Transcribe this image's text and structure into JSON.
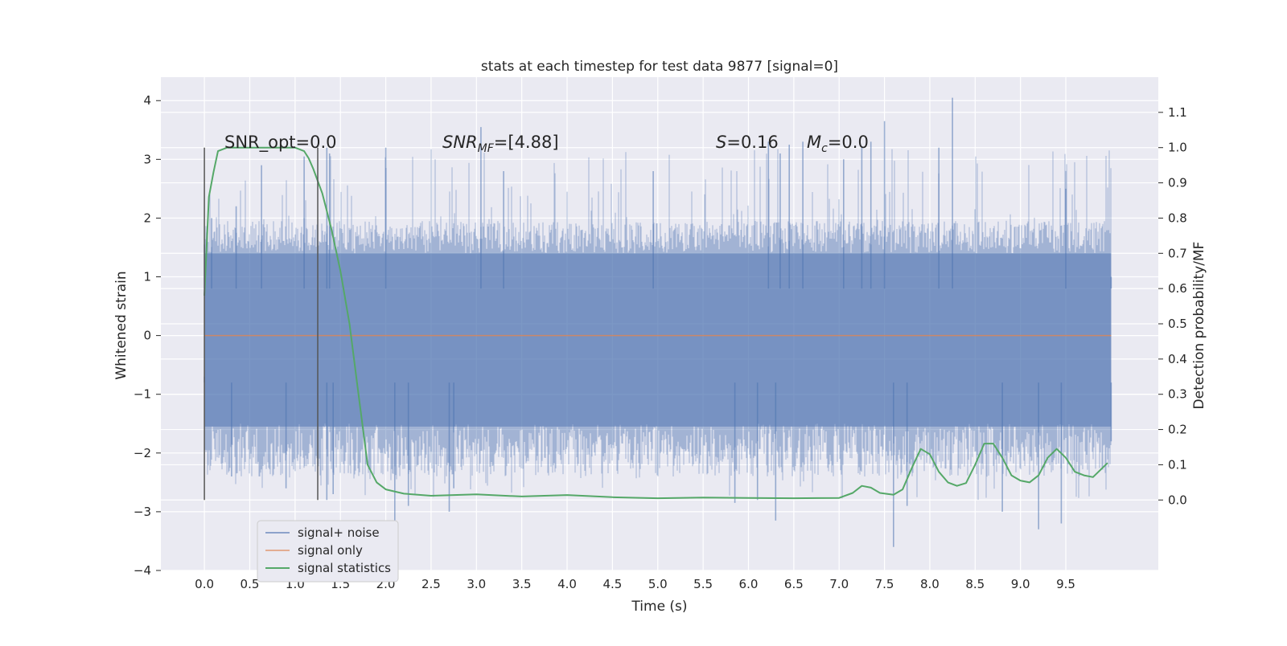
{
  "chart_data": {
    "type": "line",
    "title": "stats at each timestep for test data 9877 [signal=0]",
    "xlabel": "Time (s)",
    "ylabel_left": "Whitened strain",
    "ylabel_right": "Detection probability/MF",
    "xlim": [
      -0.48,
      10.52
    ],
    "ylim_left": [
      -4,
      4.4
    ],
    "ylim_right": [
      -0.2,
      1.2
    ],
    "x_ticks": [
      0.0,
      0.5,
      1.0,
      1.5,
      2.0,
      2.5,
      3.0,
      3.5,
      4.0,
      4.5,
      5.0,
      5.5,
      6.0,
      6.5,
      7.0,
      7.5,
      8.0,
      8.5,
      9.0,
      9.5
    ],
    "x_tick_labels": [
      "0.0",
      "0.5",
      "1.0",
      "1.5",
      "2.0",
      "2.5",
      "3.0",
      "3.5",
      "4.0",
      "4.5",
      "5.0",
      "5.5",
      "6.0",
      "6.5",
      "7.0",
      "7.5",
      "8.0",
      "8.5",
      "9.0",
      "9.5"
    ],
    "y_left_ticks": [
      -4,
      -3,
      -2,
      -1,
      0,
      1,
      2,
      3,
      4
    ],
    "y_left_tick_labels": [
      "−4",
      "−3",
      "−2",
      "−1",
      "0",
      "1",
      "2",
      "3",
      "4"
    ],
    "y_right_ticks": [
      0.0,
      0.1,
      0.2,
      0.3,
      0.4,
      0.5,
      0.6,
      0.7,
      0.8,
      0.9,
      1.0,
      1.1
    ],
    "y_right_tick_labels": [
      "0.0",
      "0.1",
      "0.2",
      "0.3",
      "0.4",
      "0.5",
      "0.6",
      "0.7",
      "0.8",
      "0.9",
      "1.0",
      "1.1"
    ],
    "grid": true,
    "legend_placement": "lower-left",
    "annotations": {
      "snr_opt": "SNR_opt=0.0",
      "snr_mf_name": "SNR",
      "snr_mf_sub": "MF",
      "snr_mf_value": "=[4.88]",
      "s_name": "S",
      "s_value": "=0.16",
      "mc_name": "M",
      "mc_sub": "c",
      "mc_value": "=0.0"
    },
    "vertical_markers": [
      {
        "x": 0.0,
        "y_range": [
          -2.8,
          3.2
        ]
      },
      {
        "x": 1.25,
        "y_range": [
          -2.8,
          3.2
        ]
      }
    ],
    "series": [
      {
        "name": "signal+ noise",
        "axis": "left",
        "color": "#4c72b0",
        "kind": "dense_noise",
        "x_range": [
          0.0,
          10.0
        ],
        "core_band": [
          -1.55,
          1.4
        ],
        "peaks_upper": [
          [
            0.0,
            1.55
          ],
          [
            0.08,
            2.0
          ],
          [
            0.35,
            2.2
          ],
          [
            0.63,
            2.9
          ],
          [
            1.1,
            3.05
          ],
          [
            1.35,
            3.2
          ],
          [
            1.38,
            3.1
          ],
          [
            2.0,
            3.2
          ],
          [
            3.05,
            3.55
          ],
          [
            3.3,
            2.8
          ],
          [
            4.95,
            2.8
          ],
          [
            6.22,
            3.3
          ],
          [
            6.35,
            3.1
          ],
          [
            6.45,
            3.25
          ],
          [
            6.6,
            3.3
          ],
          [
            7.05,
            3.0
          ],
          [
            7.25,
            3.2
          ],
          [
            7.35,
            3.3
          ],
          [
            7.5,
            3.65
          ],
          [
            8.1,
            3.2
          ],
          [
            8.25,
            4.05
          ],
          [
            9.5,
            2.5
          ],
          [
            10.0,
            1.0
          ]
        ],
        "peaks_lower": [
          [
            0.0,
            -0.7
          ],
          [
            0.3,
            -2.4
          ],
          [
            0.9,
            -2.6
          ],
          [
            1.35,
            -2.8
          ],
          [
            1.42,
            -2.7
          ],
          [
            2.1,
            -3.15
          ],
          [
            2.25,
            -2.9
          ],
          [
            2.7,
            -3.0
          ],
          [
            2.75,
            -2.6
          ],
          [
            5.85,
            -2.85
          ],
          [
            6.1,
            -2.8
          ],
          [
            6.3,
            -3.15
          ],
          [
            7.6,
            -3.6
          ],
          [
            7.75,
            -2.9
          ],
          [
            8.8,
            -3.0
          ],
          [
            9.2,
            -3.3
          ],
          [
            9.45,
            -3.2
          ],
          [
            10.0,
            -1.8
          ]
        ]
      },
      {
        "name": "signal only",
        "axis": "left",
        "color": "#dd8452",
        "x": [
          0.0,
          10.0
        ],
        "y": [
          0.0,
          0.0
        ]
      },
      {
        "name": "signal statistics",
        "axis": "right",
        "color": "#55a868",
        "x": [
          0.0,
          0.05,
          0.1,
          0.15,
          0.25,
          0.4,
          0.6,
          0.8,
          1.0,
          1.1,
          1.15,
          1.2,
          1.3,
          1.4,
          1.5,
          1.6,
          1.7,
          1.8,
          1.9,
          2.0,
          2.2,
          2.5,
          3.0,
          3.5,
          4.0,
          4.5,
          5.0,
          5.5,
          6.0,
          6.5,
          7.0,
          7.15,
          7.25,
          7.35,
          7.45,
          7.6,
          7.7,
          7.8,
          7.9,
          8.0,
          8.1,
          8.2,
          8.3,
          8.4,
          8.5,
          8.6,
          8.7,
          8.8,
          8.9,
          9.0,
          9.1,
          9.2,
          9.3,
          9.4,
          9.5,
          9.6,
          9.7,
          9.8,
          9.9,
          9.96
        ],
        "y": [
          0.58,
          0.86,
          0.93,
          0.99,
          1.0,
          1.0,
          1.0,
          1.0,
          1.0,
          0.99,
          0.97,
          0.94,
          0.87,
          0.77,
          0.65,
          0.5,
          0.3,
          0.1,
          0.05,
          0.03,
          0.018,
          0.012,
          0.016,
          0.01,
          0.014,
          0.008,
          0.005,
          0.007,
          0.006,
          0.005,
          0.006,
          0.02,
          0.04,
          0.035,
          0.02,
          0.015,
          0.03,
          0.09,
          0.145,
          0.13,
          0.08,
          0.05,
          0.04,
          0.048,
          0.1,
          0.16,
          0.16,
          0.12,
          0.07,
          0.055,
          0.05,
          0.07,
          0.12,
          0.145,
          0.12,
          0.08,
          0.07,
          0.065,
          0.09,
          0.105
        ]
      }
    ]
  }
}
